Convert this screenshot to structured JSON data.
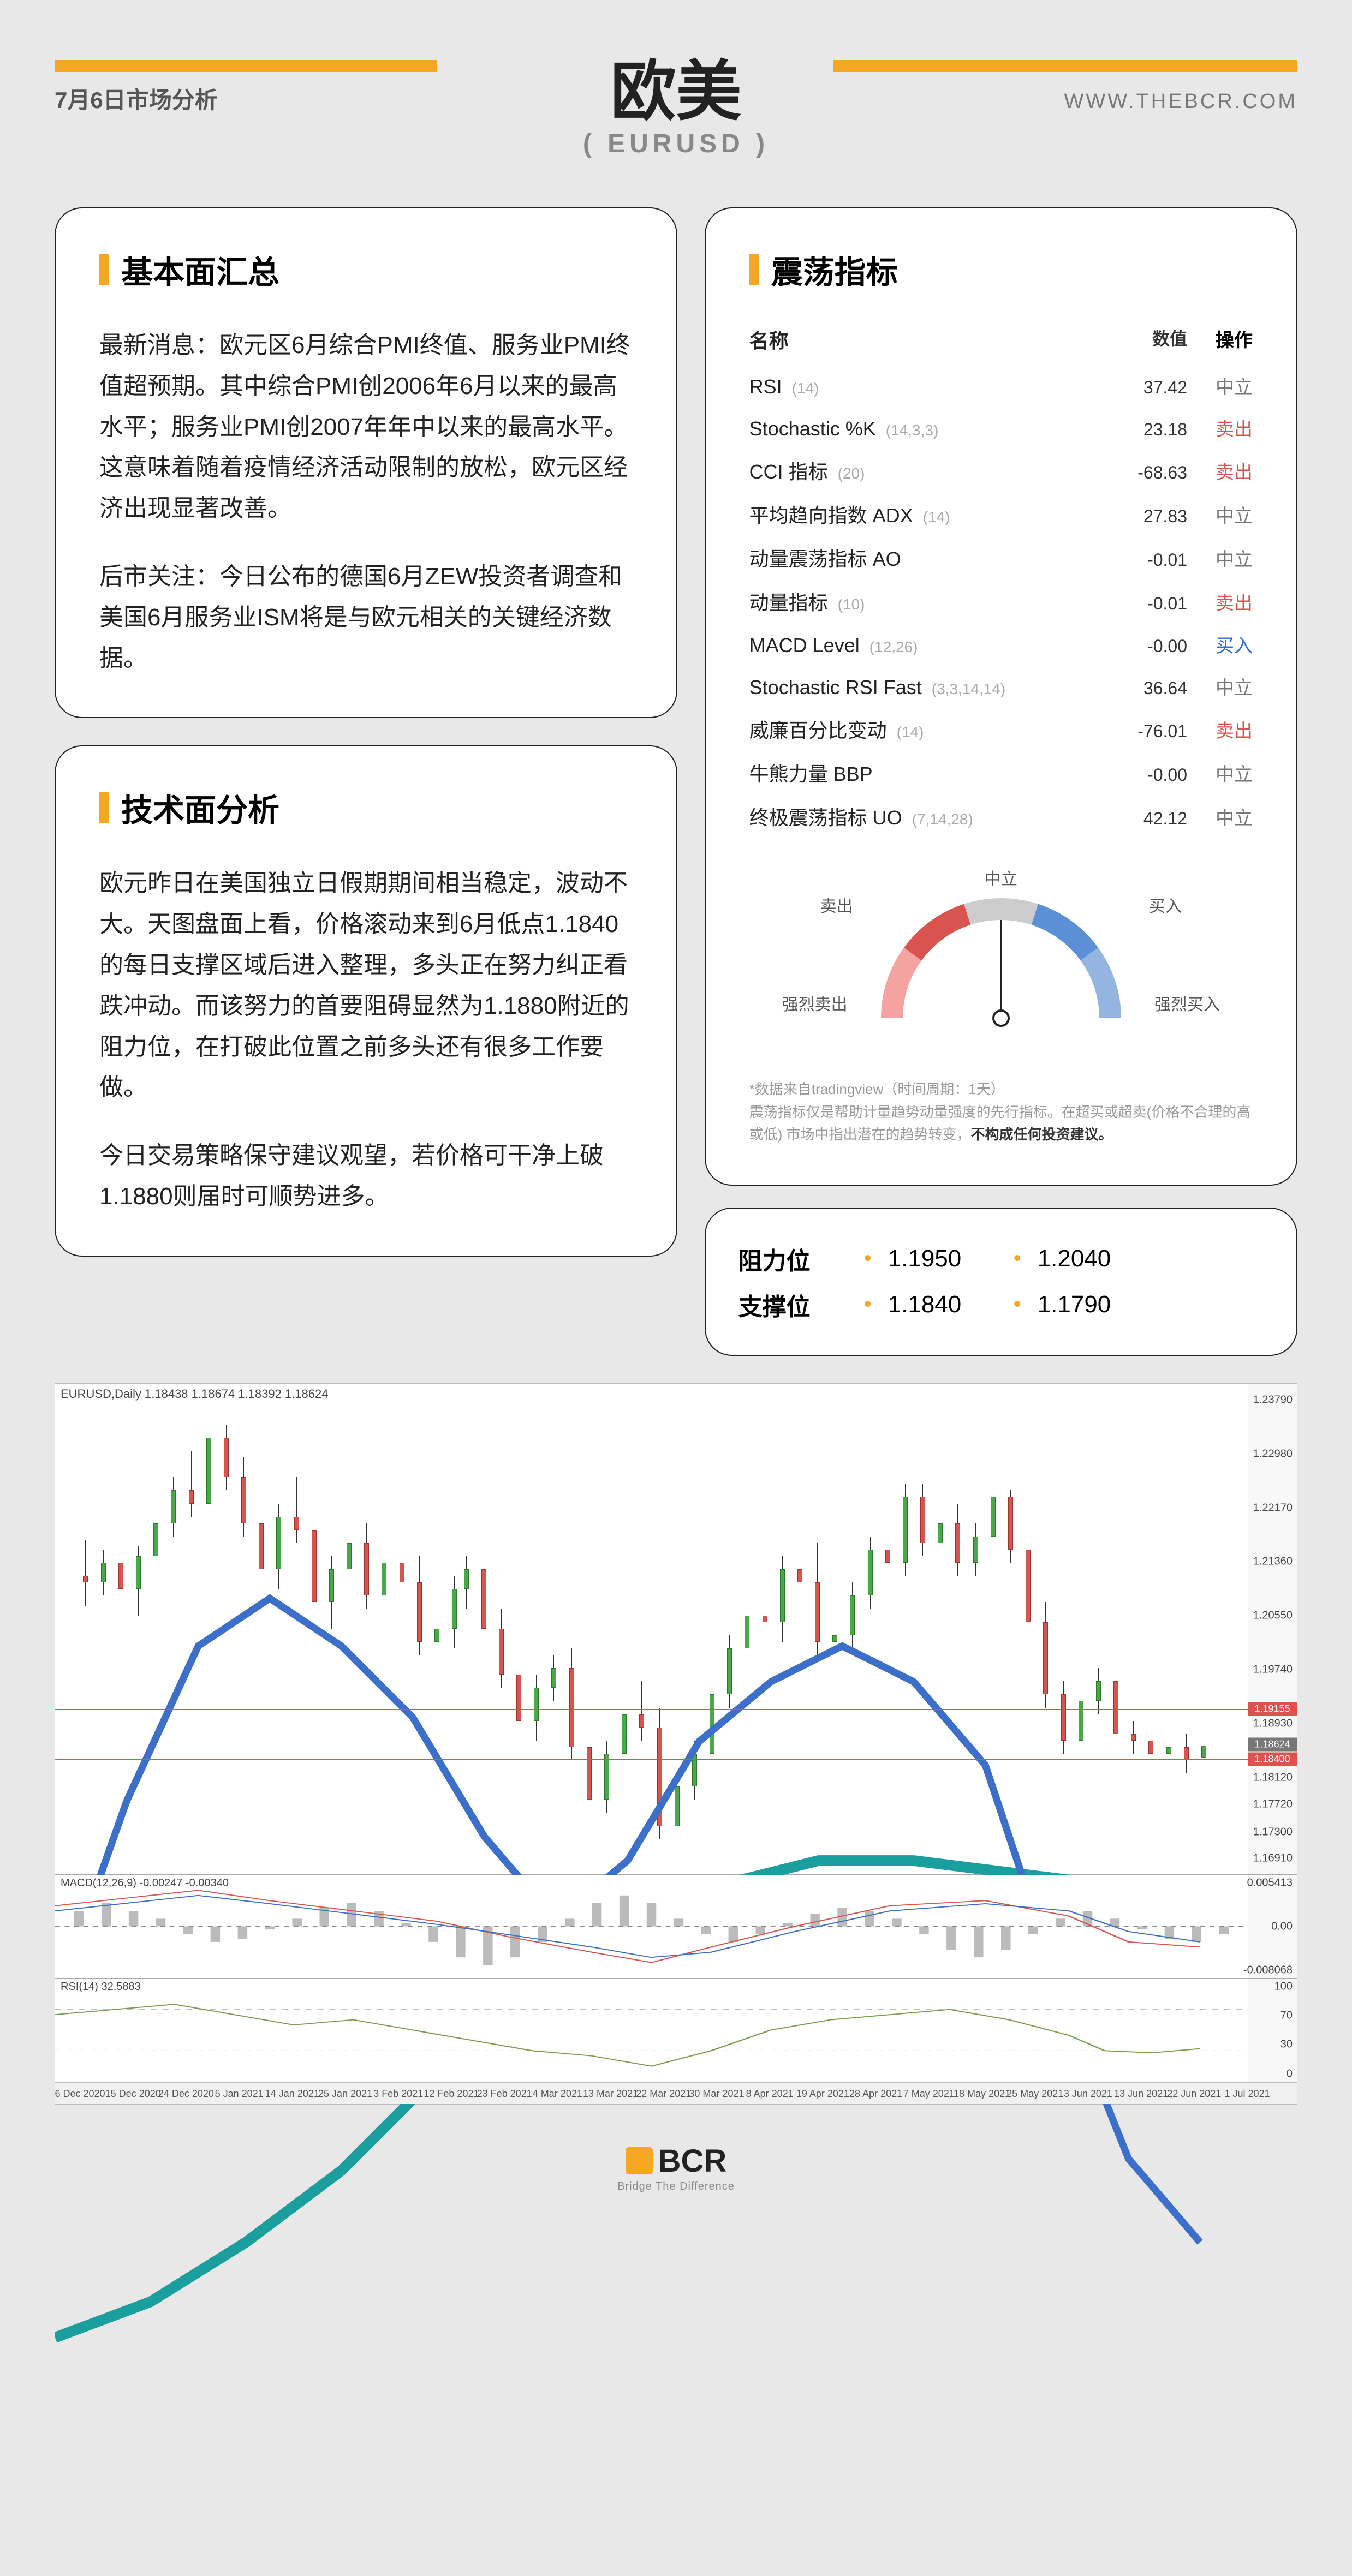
{
  "header": {
    "date": "7月6日市场分析",
    "title_main": "欧美",
    "title_sub": "( EURUSD )",
    "url": "WWW.THEBCR.COM",
    "accent_color": "#f5a623"
  },
  "fundamentals": {
    "title": "基本面汇总",
    "paragraphs": [
      "最新消息：欧元区6月综合PMI终值、服务业PMI终值超预期。其中综合PMI创2006年6月以来的最高水平；服务业PMI创2007年年中以来的最高水平。这意味着随着疫情经济活动限制的放松，欧元区经济出现显著改善。",
      "后市关注：今日公布的德国6月ZEW投资者调查和美国6月服务业ISM将是与欧元相关的关键经济数据。"
    ]
  },
  "technical": {
    "title": "技术面分析",
    "paragraphs": [
      "欧元昨日在美国独立日假期期间相当稳定，波动不大。天图盘面上看，价格滚动来到6月低点1.1840的每日支撑区域后进入整理，多头正在努力纠正看跌冲动。而该努力的首要阻碍显然为1.1880附近的阻力位，在打破此位置之前多头还有很多工作要做。",
      "今日交易策略保守建议观望，若价格可干净上破1.1880则届时可顺势进多。"
    ]
  },
  "oscillators": {
    "title": "震荡指标",
    "columns": {
      "name": "名称",
      "value": "数值",
      "action": "操作"
    },
    "rows": [
      {
        "name": "RSI",
        "params": "(14)",
        "value": "37.42",
        "action": "中立",
        "action_class": "act-neutral"
      },
      {
        "name": "Stochastic %K",
        "params": "(14,3,3)",
        "value": "23.18",
        "action": "卖出",
        "action_class": "act-sell"
      },
      {
        "name": "CCI 指标",
        "params": "(20)",
        "value": "-68.63",
        "action": "卖出",
        "action_class": "act-sell"
      },
      {
        "name": "平均趋向指数 ADX",
        "params": "(14)",
        "value": "27.83",
        "action": "中立",
        "action_class": "act-neutral"
      },
      {
        "name": "动量震荡指标 AO",
        "params": "",
        "value": "-0.01",
        "action": "中立",
        "action_class": "act-neutral"
      },
      {
        "name": "动量指标",
        "params": "(10)",
        "value": "-0.01",
        "action": "卖出",
        "action_class": "act-sell"
      },
      {
        "name": "MACD Level",
        "params": "(12,26)",
        "value": "-0.00",
        "action": "买入",
        "action_class": "act-buy"
      },
      {
        "name": "Stochastic RSI Fast",
        "params": "(3,3,14,14)",
        "value": "36.64",
        "action": "中立",
        "action_class": "act-neutral"
      },
      {
        "name": "威廉百分比变动",
        "params": "(14)",
        "value": "-76.01",
        "action": "卖出",
        "action_class": "act-sell"
      },
      {
        "name": "牛熊力量 BBP",
        "params": "",
        "value": "-0.00",
        "action": "中立",
        "action_class": "act-neutral"
      },
      {
        "name": "终极震荡指标 UO",
        "params": "(7,14,28)",
        "value": "42.12",
        "action": "中立",
        "action_class": "act-neutral"
      }
    ],
    "gauge": {
      "labels": {
        "strong_sell": "强烈卖出",
        "sell": "卖出",
        "neutral": "中立",
        "buy": "买入",
        "strong_buy": "强烈买入"
      },
      "colors": {
        "sell_outer": "#f5a3a0",
        "sell_inner": "#d9534f",
        "neutral": "#cccccc",
        "buy_inner": "#5b8fd6",
        "buy_outer": "#93b5e0"
      },
      "needle_angle_deg": 0
    },
    "note_prefix": "*数据来自tradingview（时间周期：1天）",
    "note_body": "震荡指标仅是帮助计量趋势动量强度的先行指标。在超买或超卖(价格不合理的高或低) 市场中指出潜在的趋势转变，",
    "note_bold": "不构成任何投资建议。"
  },
  "levels": {
    "resistance_label": "阻力位",
    "support_label": "支撑位",
    "resistance": [
      "1.1950",
      "1.2040"
    ],
    "support": [
      "1.1840",
      "1.1790"
    ]
  },
  "chart": {
    "symbol_info": "EURUSD,Daily  1.18438 1.18674 1.18392 1.18624",
    "y_axis": {
      "min": 1.1691,
      "max": 1.2379,
      "ticks": [
        "1.23790",
        "1.22980",
        "1.22170",
        "1.21360",
        "1.20550",
        "1.19740",
        "1.18930",
        "1.18120",
        "1.17720",
        "1.17300",
        "1.16910"
      ],
      "price_tags": [
        {
          "value": "1.19155",
          "color": "#d9534f"
        },
        {
          "value": "1.18624",
          "color": "#777"
        },
        {
          "value": "1.18400",
          "color": "#d9534f"
        }
      ],
      "hlines": [
        {
          "value": 1.19155,
          "color": "#d9534f"
        },
        {
          "value": 1.184,
          "color": "#d9534f"
        }
      ]
    },
    "ma_lines": [
      {
        "color": "#1a9e9e",
        "width": 3,
        "points": [
          [
            0,
            0.8
          ],
          [
            0.08,
            0.77
          ],
          [
            0.16,
            0.72
          ],
          [
            0.24,
            0.66
          ],
          [
            0.32,
            0.58
          ],
          [
            0.4,
            0.5
          ],
          [
            0.48,
            0.45
          ],
          [
            0.56,
            0.42
          ],
          [
            0.64,
            0.4
          ],
          [
            0.72,
            0.4
          ],
          [
            0.8,
            0.41
          ],
          [
            0.88,
            0.42
          ],
          [
            0.96,
            0.42
          ]
        ]
      },
      {
        "color": "#3b6fc9",
        "width": 2,
        "points": [
          [
            0,
            0.52
          ],
          [
            0.06,
            0.35
          ],
          [
            0.12,
            0.22
          ],
          [
            0.18,
            0.18
          ],
          [
            0.24,
            0.22
          ],
          [
            0.3,
            0.28
          ],
          [
            0.36,
            0.38
          ],
          [
            0.42,
            0.45
          ],
          [
            0.48,
            0.4
          ],
          [
            0.54,
            0.3
          ],
          [
            0.6,
            0.25
          ],
          [
            0.66,
            0.22
          ],
          [
            0.72,
            0.25
          ],
          [
            0.78,
            0.32
          ],
          [
            0.84,
            0.5
          ],
          [
            0.9,
            0.65
          ],
          [
            0.96,
            0.72
          ]
        ]
      }
    ],
    "candles": [
      {
        "x": 0.01,
        "o": 1.212,
        "h": 1.2175,
        "l": 1.2075,
        "c": 1.211
      },
      {
        "x": 0.025,
        "o": 1.211,
        "h": 1.216,
        "l": 1.209,
        "c": 1.214
      },
      {
        "x": 0.04,
        "o": 1.214,
        "h": 1.218,
        "l": 1.208,
        "c": 1.21
      },
      {
        "x": 0.055,
        "o": 1.21,
        "h": 1.2165,
        "l": 1.206,
        "c": 1.215
      },
      {
        "x": 0.07,
        "o": 1.215,
        "h": 1.222,
        "l": 1.213,
        "c": 1.22
      },
      {
        "x": 0.085,
        "o": 1.22,
        "h": 1.227,
        "l": 1.218,
        "c": 1.225
      },
      {
        "x": 0.1,
        "o": 1.225,
        "h": 1.231,
        "l": 1.221,
        "c": 1.223
      },
      {
        "x": 0.115,
        "o": 1.223,
        "h": 1.235,
        "l": 1.22,
        "c": 1.233
      },
      {
        "x": 0.13,
        "o": 1.233,
        "h": 1.2349,
        "l": 1.225,
        "c": 1.227
      },
      {
        "x": 0.145,
        "o": 1.227,
        "h": 1.23,
        "l": 1.218,
        "c": 1.22
      },
      {
        "x": 0.16,
        "o": 1.22,
        "h": 1.223,
        "l": 1.211,
        "c": 1.213
      },
      {
        "x": 0.175,
        "o": 1.213,
        "h": 1.223,
        "l": 1.21,
        "c": 1.221
      },
      {
        "x": 0.19,
        "o": 1.221,
        "h": 1.227,
        "l": 1.217,
        "c": 1.219
      },
      {
        "x": 0.205,
        "o": 1.219,
        "h": 1.222,
        "l": 1.206,
        "c": 1.208
      },
      {
        "x": 0.22,
        "o": 1.208,
        "h": 1.215,
        "l": 1.204,
        "c": 1.213
      },
      {
        "x": 0.235,
        "o": 1.213,
        "h": 1.219,
        "l": 1.211,
        "c": 1.217
      },
      {
        "x": 0.25,
        "o": 1.217,
        "h": 1.22,
        "l": 1.207,
        "c": 1.209
      },
      {
        "x": 0.265,
        "o": 1.209,
        "h": 1.216,
        "l": 1.205,
        "c": 1.214
      },
      {
        "x": 0.28,
        "o": 1.214,
        "h": 1.218,
        "l": 1.209,
        "c": 1.211
      },
      {
        "x": 0.295,
        "o": 1.211,
        "h": 1.215,
        "l": 1.2,
        "c": 1.202
      },
      {
        "x": 0.31,
        "o": 1.202,
        "h": 1.206,
        "l": 1.196,
        "c": 1.204
      },
      {
        "x": 0.325,
        "o": 1.204,
        "h": 1.212,
        "l": 1.201,
        "c": 1.21
      },
      {
        "x": 0.335,
        "o": 1.21,
        "h": 1.215,
        "l": 1.207,
        "c": 1.213
      },
      {
        "x": 0.35,
        "o": 1.213,
        "h": 1.2155,
        "l": 1.202,
        "c": 1.204
      },
      {
        "x": 0.365,
        "o": 1.204,
        "h": 1.207,
        "l": 1.195,
        "c": 1.197
      },
      {
        "x": 0.38,
        "o": 1.197,
        "h": 1.199,
        "l": 1.188,
        "c": 1.19
      },
      {
        "x": 0.395,
        "o": 1.19,
        "h": 1.197,
        "l": 1.187,
        "c": 1.195
      },
      {
        "x": 0.41,
        "o": 1.195,
        "h": 1.2,
        "l": 1.193,
        "c": 1.198
      },
      {
        "x": 0.425,
        "o": 1.198,
        "h": 1.201,
        "l": 1.184,
        "c": 1.186
      },
      {
        "x": 0.44,
        "o": 1.186,
        "h": 1.19,
        "l": 1.176,
        "c": 1.178
      },
      {
        "x": 0.455,
        "o": 1.178,
        "h": 1.187,
        "l": 1.176,
        "c": 1.185
      },
      {
        "x": 0.47,
        "o": 1.185,
        "h": 1.193,
        "l": 1.183,
        "c": 1.191
      },
      {
        "x": 0.485,
        "o": 1.191,
        "h": 1.196,
        "l": 1.187,
        "c": 1.189
      },
      {
        "x": 0.5,
        "o": 1.189,
        "h": 1.192,
        "l": 1.172,
        "c": 1.174
      },
      {
        "x": 0.515,
        "o": 1.174,
        "h": 1.182,
        "l": 1.171,
        "c": 1.18
      },
      {
        "x": 0.53,
        "o": 1.18,
        "h": 1.187,
        "l": 1.178,
        "c": 1.185
      },
      {
        "x": 0.545,
        "o": 1.185,
        "h": 1.196,
        "l": 1.183,
        "c": 1.194
      },
      {
        "x": 0.56,
        "o": 1.194,
        "h": 1.203,
        "l": 1.192,
        "c": 1.201
      },
      {
        "x": 0.575,
        "o": 1.201,
        "h": 1.208,
        "l": 1.199,
        "c": 1.206
      },
      {
        "x": 0.59,
        "o": 1.206,
        "h": 1.212,
        "l": 1.203,
        "c": 1.205
      },
      {
        "x": 0.605,
        "o": 1.205,
        "h": 1.215,
        "l": 1.202,
        "c": 1.213
      },
      {
        "x": 0.62,
        "o": 1.213,
        "h": 1.218,
        "l": 1.209,
        "c": 1.211
      },
      {
        "x": 0.635,
        "o": 1.211,
        "h": 1.217,
        "l": 1.2,
        "c": 1.202
      },
      {
        "x": 0.65,
        "o": 1.202,
        "h": 1.205,
        "l": 1.198,
        "c": 1.203
      },
      {
        "x": 0.665,
        "o": 1.203,
        "h": 1.211,
        "l": 1.201,
        "c": 1.209
      },
      {
        "x": 0.68,
        "o": 1.209,
        "h": 1.218,
        "l": 1.207,
        "c": 1.216
      },
      {
        "x": 0.695,
        "o": 1.216,
        "h": 1.221,
        "l": 1.213,
        "c": 1.214
      },
      {
        "x": 0.71,
        "o": 1.214,
        "h": 1.226,
        "l": 1.212,
        "c": 1.224
      },
      {
        "x": 0.725,
        "o": 1.224,
        "h": 1.226,
        "l": 1.215,
        "c": 1.217
      },
      {
        "x": 0.74,
        "o": 1.217,
        "h": 1.222,
        "l": 1.215,
        "c": 1.22
      },
      {
        "x": 0.755,
        "o": 1.22,
        "h": 1.223,
        "l": 1.212,
        "c": 1.214
      },
      {
        "x": 0.77,
        "o": 1.214,
        "h": 1.22,
        "l": 1.212,
        "c": 1.218
      },
      {
        "x": 0.785,
        "o": 1.218,
        "h": 1.226,
        "l": 1.216,
        "c": 1.224
      },
      {
        "x": 0.8,
        "o": 1.224,
        "h": 1.225,
        "l": 1.214,
        "c": 1.216
      },
      {
        "x": 0.815,
        "o": 1.216,
        "h": 1.218,
        "l": 1.203,
        "c": 1.205
      },
      {
        "x": 0.83,
        "o": 1.205,
        "h": 1.208,
        "l": 1.192,
        "c": 1.194
      },
      {
        "x": 0.845,
        "o": 1.194,
        "h": 1.196,
        "l": 1.185,
        "c": 1.187
      },
      {
        "x": 0.86,
        "o": 1.187,
        "h": 1.195,
        "l": 1.185,
        "c": 1.193
      },
      {
        "x": 0.875,
        "o": 1.193,
        "h": 1.198,
        "l": 1.191,
        "c": 1.196
      },
      {
        "x": 0.89,
        "o": 1.196,
        "h": 1.197,
        "l": 1.186,
        "c": 1.188
      },
      {
        "x": 0.905,
        "o": 1.188,
        "h": 1.19,
        "l": 1.185,
        "c": 1.187
      },
      {
        "x": 0.92,
        "o": 1.187,
        "h": 1.193,
        "l": 1.183,
        "c": 1.185
      },
      {
        "x": 0.935,
        "o": 1.185,
        "h": 1.1895,
        "l": 1.1807,
        "c": 1.186
      },
      {
        "x": 0.95,
        "o": 1.186,
        "h": 1.188,
        "l": 1.182,
        "c": 1.184
      },
      {
        "x": 0.965,
        "o": 1.1844,
        "h": 1.1867,
        "l": 1.1839,
        "c": 1.1862
      }
    ],
    "macd": {
      "label": "MACD(12,26,9) -0.00247 -0.00340",
      "ticks": [
        "0.005413",
        "0.00",
        "-0.008068"
      ],
      "red_line": [
        [
          0,
          0.3
        ],
        [
          0.08,
          0.2
        ],
        [
          0.12,
          0.15
        ],
        [
          0.18,
          0.25
        ],
        [
          0.25,
          0.35
        ],
        [
          0.32,
          0.45
        ],
        [
          0.38,
          0.6
        ],
        [
          0.45,
          0.75
        ],
        [
          0.5,
          0.85
        ],
        [
          0.55,
          0.7
        ],
        [
          0.62,
          0.5
        ],
        [
          0.7,
          0.3
        ],
        [
          0.78,
          0.25
        ],
        [
          0.85,
          0.4
        ],
        [
          0.9,
          0.65
        ],
        [
          0.96,
          0.7
        ]
      ],
      "blue_line": [
        [
          0,
          0.35
        ],
        [
          0.08,
          0.25
        ],
        [
          0.12,
          0.2
        ],
        [
          0.18,
          0.28
        ],
        [
          0.25,
          0.38
        ],
        [
          0.32,
          0.48
        ],
        [
          0.38,
          0.58
        ],
        [
          0.45,
          0.7
        ],
        [
          0.5,
          0.8
        ],
        [
          0.55,
          0.75
        ],
        [
          0.62,
          0.55
        ],
        [
          0.7,
          0.35
        ],
        [
          0.78,
          0.28
        ],
        [
          0.85,
          0.35
        ],
        [
          0.9,
          0.55
        ],
        [
          0.96,
          0.65
        ]
      ],
      "hist": [
        0.1,
        0.15,
        0.1,
        0.05,
        -0.05,
        -0.1,
        -0.08,
        -0.02,
        0.05,
        0.12,
        0.15,
        0.1,
        0.02,
        -0.1,
        -0.2,
        -0.25,
        -0.2,
        -0.1,
        0.05,
        0.15,
        0.2,
        0.15,
        0.05,
        -0.05,
        -0.1,
        -0.05,
        0.02,
        0.08,
        0.12,
        0.1,
        0.05,
        -0.05,
        -0.15,
        -0.2,
        -0.15,
        -0.05,
        0.05,
        0.1,
        0.05,
        -0.02,
        -0.08,
        -0.1,
        -0.05
      ]
    },
    "rsi": {
      "label": "RSI(14) 32.5883",
      "ticks": [
        "100",
        "70",
        "30",
        "0"
      ],
      "line": [
        [
          0,
          0.35
        ],
        [
          0.05,
          0.3
        ],
        [
          0.1,
          0.25
        ],
        [
          0.15,
          0.35
        ],
        [
          0.2,
          0.45
        ],
        [
          0.25,
          0.4
        ],
        [
          0.3,
          0.5
        ],
        [
          0.35,
          0.6
        ],
        [
          0.4,
          0.7
        ],
        [
          0.45,
          0.75
        ],
        [
          0.5,
          0.85
        ],
        [
          0.55,
          0.7
        ],
        [
          0.6,
          0.5
        ],
        [
          0.65,
          0.4
        ],
        [
          0.7,
          0.35
        ],
        [
          0.75,
          0.3
        ],
        [
          0.8,
          0.4
        ],
        [
          0.85,
          0.55
        ],
        [
          0.88,
          0.7
        ],
        [
          0.92,
          0.72
        ],
        [
          0.96,
          0.68
        ]
      ]
    },
    "x_axis": [
      "6 Dec 2020",
      "15 Dec 2020",
      "24 Dec 2020",
      "5 Jan 2021",
      "14 Jan 2021",
      "25 Jan 2021",
      "3 Feb 2021",
      "12 Feb 2021",
      "23 Feb 2021",
      "4 Mar 2021",
      "13 Mar 2021",
      "22 Mar 2021",
      "30 Mar 2021",
      "8 Apr 2021",
      "19 Apr 2021",
      "28 Apr 2021",
      "7 May 2021",
      "18 May 2021",
      "25 May 2021",
      "3 Jun 2021",
      "13 Jun 2021",
      "22 Jun 2021",
      "1 Jul 2021"
    ]
  },
  "footer": {
    "brand": "BCR",
    "tagline": "Bridge The Difference"
  }
}
